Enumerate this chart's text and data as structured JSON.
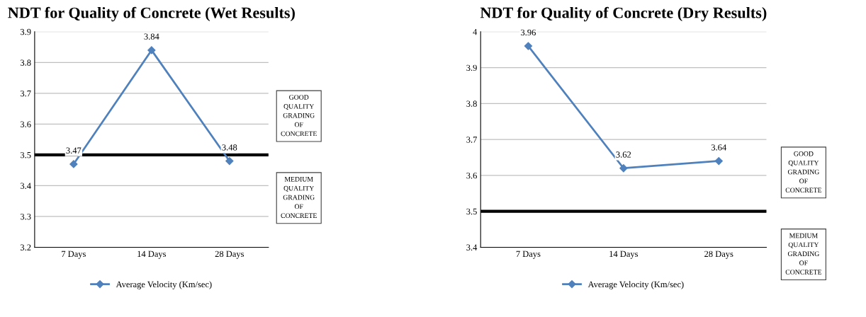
{
  "chart_data": [
    {
      "type": "line",
      "title": "NDT for Quality of Concrete (Wet Results)",
      "categories": [
        "7 Days",
        "14 Days",
        "28 Days"
      ],
      "series": [
        {
          "name": "Average Velocity (Km/sec)",
          "color": "#4f81bd",
          "values": [
            3.47,
            3.84,
            3.48
          ]
        }
      ],
      "ylim": [
        3.2,
        3.9
      ],
      "yticks": [
        3.2,
        3.3,
        3.4,
        3.5,
        3.6,
        3.7,
        3.8,
        3.9
      ],
      "grid": "y",
      "legend": "bottom",
      "marker": "diamond",
      "data_labels": true,
      "ref_lines": [
        {
          "axis": "y",
          "value": 3.5,
          "color": "#000000"
        }
      ],
      "annotations": [
        "GOOD\nQUALITY\nGRADING\nOF\nCONCRETE",
        "MEDIUM\nQUALITY\nGRADING\nOF\nCONCRETE"
      ]
    },
    {
      "type": "line",
      "title": "NDT for Quality of Concrete (Dry Results)",
      "categories": [
        "7 Days",
        "14 Days",
        "28 Days"
      ],
      "series": [
        {
          "name": "Average Velocity (Km/sec)",
          "color": "#4f81bd",
          "values": [
            3.96,
            3.62,
            3.64
          ]
        }
      ],
      "ylim": [
        3.4,
        4
      ],
      "yticks": [
        3.4,
        3.5,
        3.6,
        3.7,
        3.8,
        3.9,
        4
      ],
      "grid": "y",
      "legend": "bottom",
      "marker": "diamond",
      "data_labels": true,
      "ref_lines": [
        {
          "axis": "y",
          "value": 3.5,
          "color": "#000000"
        }
      ],
      "annotations": [
        "GOOD\nQUALITY\nGRADING\nOF\nCONCRETE",
        "MEDIUM\nQUALITY\nGRADING\nOF\nCONCRETE"
      ]
    }
  ]
}
